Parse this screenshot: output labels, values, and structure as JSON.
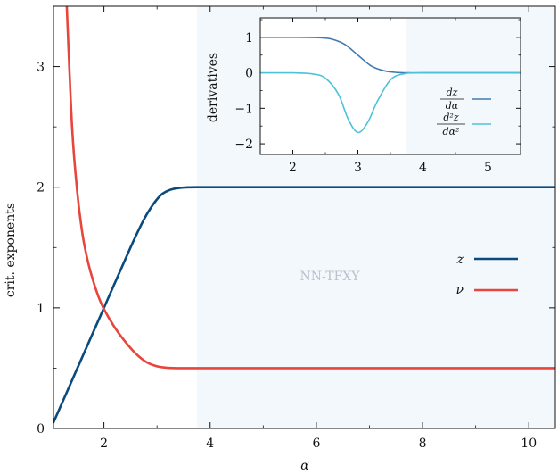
{
  "chart_data": [
    {
      "type": "line",
      "title": "",
      "xlabel": "α",
      "ylabel": "crit. exponents",
      "xlim": [
        1.05,
        10.5
      ],
      "ylim": [
        0,
        3.5
      ],
      "xticks": [
        2,
        4,
        6,
        8,
        10
      ],
      "yticks": [
        0,
        1,
        2,
        3
      ],
      "shaded_region": {
        "x_from": 3.75,
        "x_to": 10.5,
        "label": "NN-TFXY",
        "color": "#f3f8fc"
      },
      "legend": {
        "placement": "right"
      },
      "series": [
        {
          "name": "z",
          "color": "#0b4a7c",
          "x": [
            1.05,
            1.5,
            2.0,
            2.5,
            2.75,
            2.9,
            3.0,
            3.1,
            3.2,
            3.3,
            3.4,
            3.5,
            3.6,
            3.75,
            4.0,
            5.0,
            6.0,
            8.0,
            10.5
          ],
          "y": [
            0.05,
            0.5,
            1.0,
            1.5,
            1.73,
            1.84,
            1.9,
            1.945,
            1.97,
            1.985,
            1.993,
            1.997,
            1.999,
            2.0,
            2.0,
            2.0,
            2.0,
            2.0,
            2.0
          ]
        },
        {
          "name": "ν",
          "color": "#e8453c",
          "x": [
            1.3,
            1.4,
            1.5,
            1.6,
            1.7,
            1.8,
            1.9,
            2.0,
            2.2,
            2.4,
            2.6,
            2.8,
            3.0,
            3.2,
            3.5,
            4.0,
            6.0,
            8.0,
            10.5
          ],
          "y": [
            3.5,
            2.5,
            1.95,
            1.6,
            1.38,
            1.22,
            1.09,
            0.99,
            0.84,
            0.72,
            0.62,
            0.55,
            0.515,
            0.503,
            0.5,
            0.5,
            0.5,
            0.5,
            0.5
          ]
        }
      ]
    },
    {
      "type": "line",
      "title": "",
      "xlabel": "",
      "ylabel": "derivatives",
      "xlim": [
        1.5,
        5.5
      ],
      "ylim": [
        -2.3,
        1.55
      ],
      "xticks": [
        2,
        3,
        4,
        5
      ],
      "yticks": [
        -2,
        -1,
        0,
        1
      ],
      "shaded_region": {
        "x_from": 3.75,
        "x_to": 5.5,
        "color": "#f3f8fc"
      },
      "legend": {
        "placement": "right"
      },
      "series": [
        {
          "name": "dz/dα",
          "color": "#3f7ab0",
          "x": [
            1.5,
            2.0,
            2.4,
            2.6,
            2.8,
            3.0,
            3.2,
            3.4,
            3.6,
            3.8,
            4.0,
            5.0,
            5.5
          ],
          "y": [
            1.0,
            1.0,
            0.99,
            0.95,
            0.8,
            0.5,
            0.2,
            0.06,
            0.01,
            0.0,
            0.0,
            0.0,
            0.0
          ]
        },
        {
          "name": "d²z/dα²",
          "color": "#4cc3d9",
          "x": [
            1.5,
            2.0,
            2.3,
            2.5,
            2.7,
            2.85,
            3.0,
            3.15,
            3.3,
            3.5,
            3.7,
            4.0,
            5.0,
            5.5
          ],
          "y": [
            0.0,
            0.0,
            -0.03,
            -0.15,
            -0.6,
            -1.3,
            -1.68,
            -1.4,
            -0.8,
            -0.2,
            -0.03,
            0.0,
            0.0,
            0.0
          ]
        }
      ]
    }
  ],
  "main": {
    "ylabel": "crit. exponents",
    "xlabel": "α",
    "region_label": "NN-TFXY",
    "legend": {
      "z": "z",
      "nu": "ν"
    }
  },
  "inset": {
    "ylabel": "derivatives",
    "legend": {
      "d1_num": "dz",
      "d1_den": "dα",
      "d2_num": "d²z",
      "d2_den": "dα²"
    }
  }
}
